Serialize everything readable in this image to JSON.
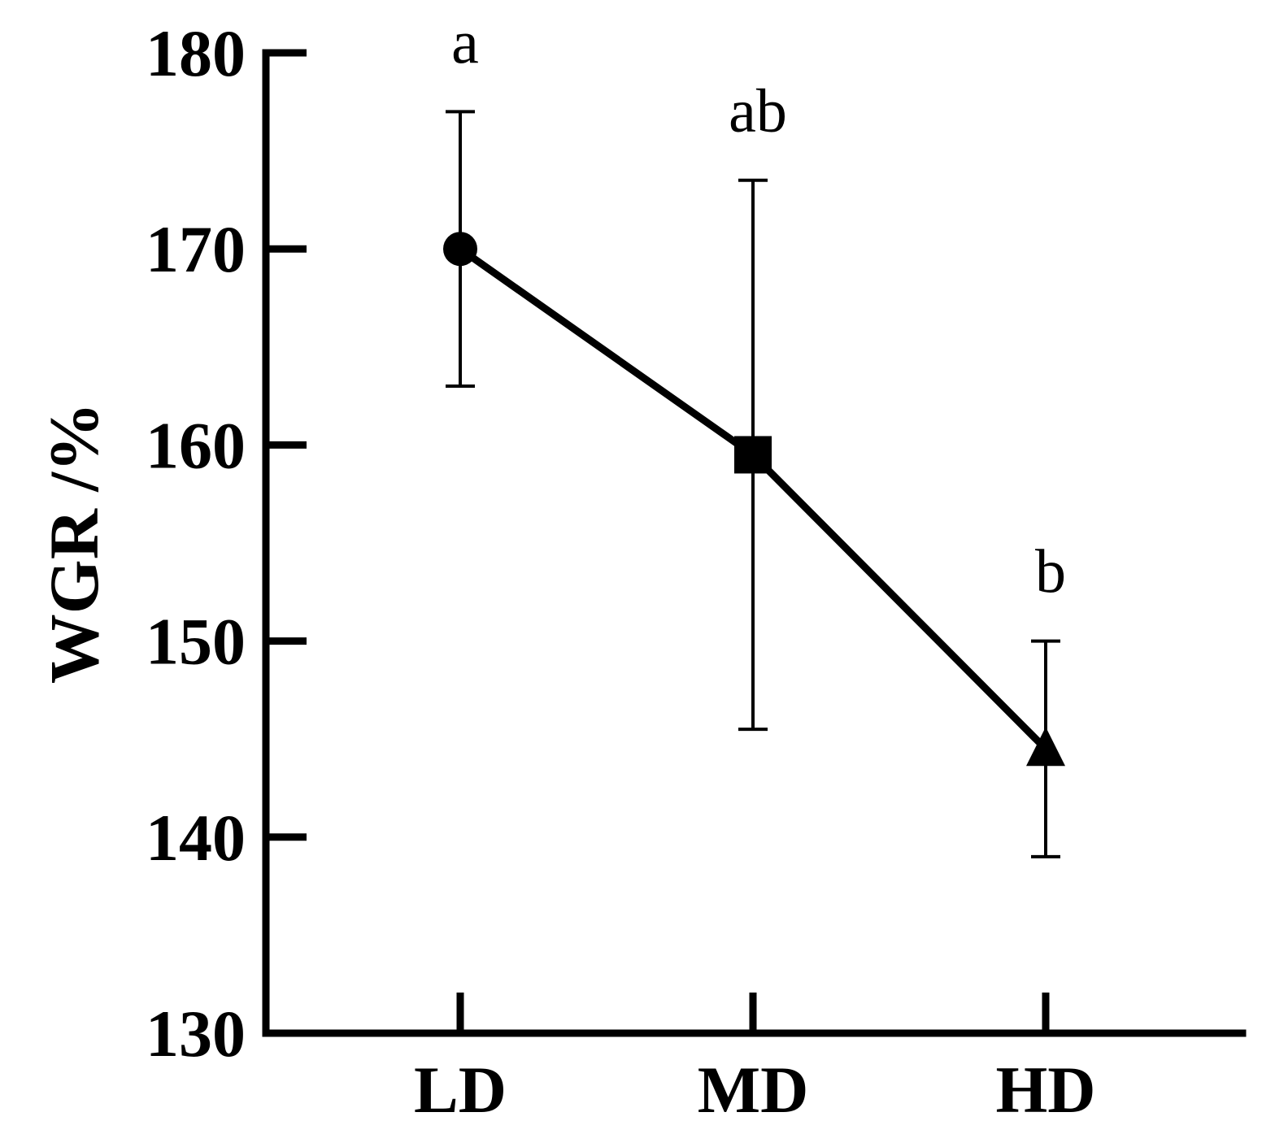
{
  "chart_data": {
    "type": "line",
    "categories": [
      "LD",
      "MD",
      "HD"
    ],
    "ylabel": "WGR /%",
    "xlabel": "",
    "ylim": [
      130,
      180
    ],
    "yticks": [
      "130",
      "140",
      "150",
      "160",
      "170",
      "180"
    ],
    "grid": false,
    "series": [
      {
        "values": [
          170.0,
          159.5,
          144.5
        ],
        "error_upper": [
          177.0,
          173.5,
          150.0
        ],
        "error_lower": [
          163.0,
          145.5,
          139.0
        ],
        "markers": [
          "circle",
          "square",
          "triangle"
        ],
        "significance_labels": [
          "a",
          "ab",
          "b"
        ]
      }
    ]
  }
}
